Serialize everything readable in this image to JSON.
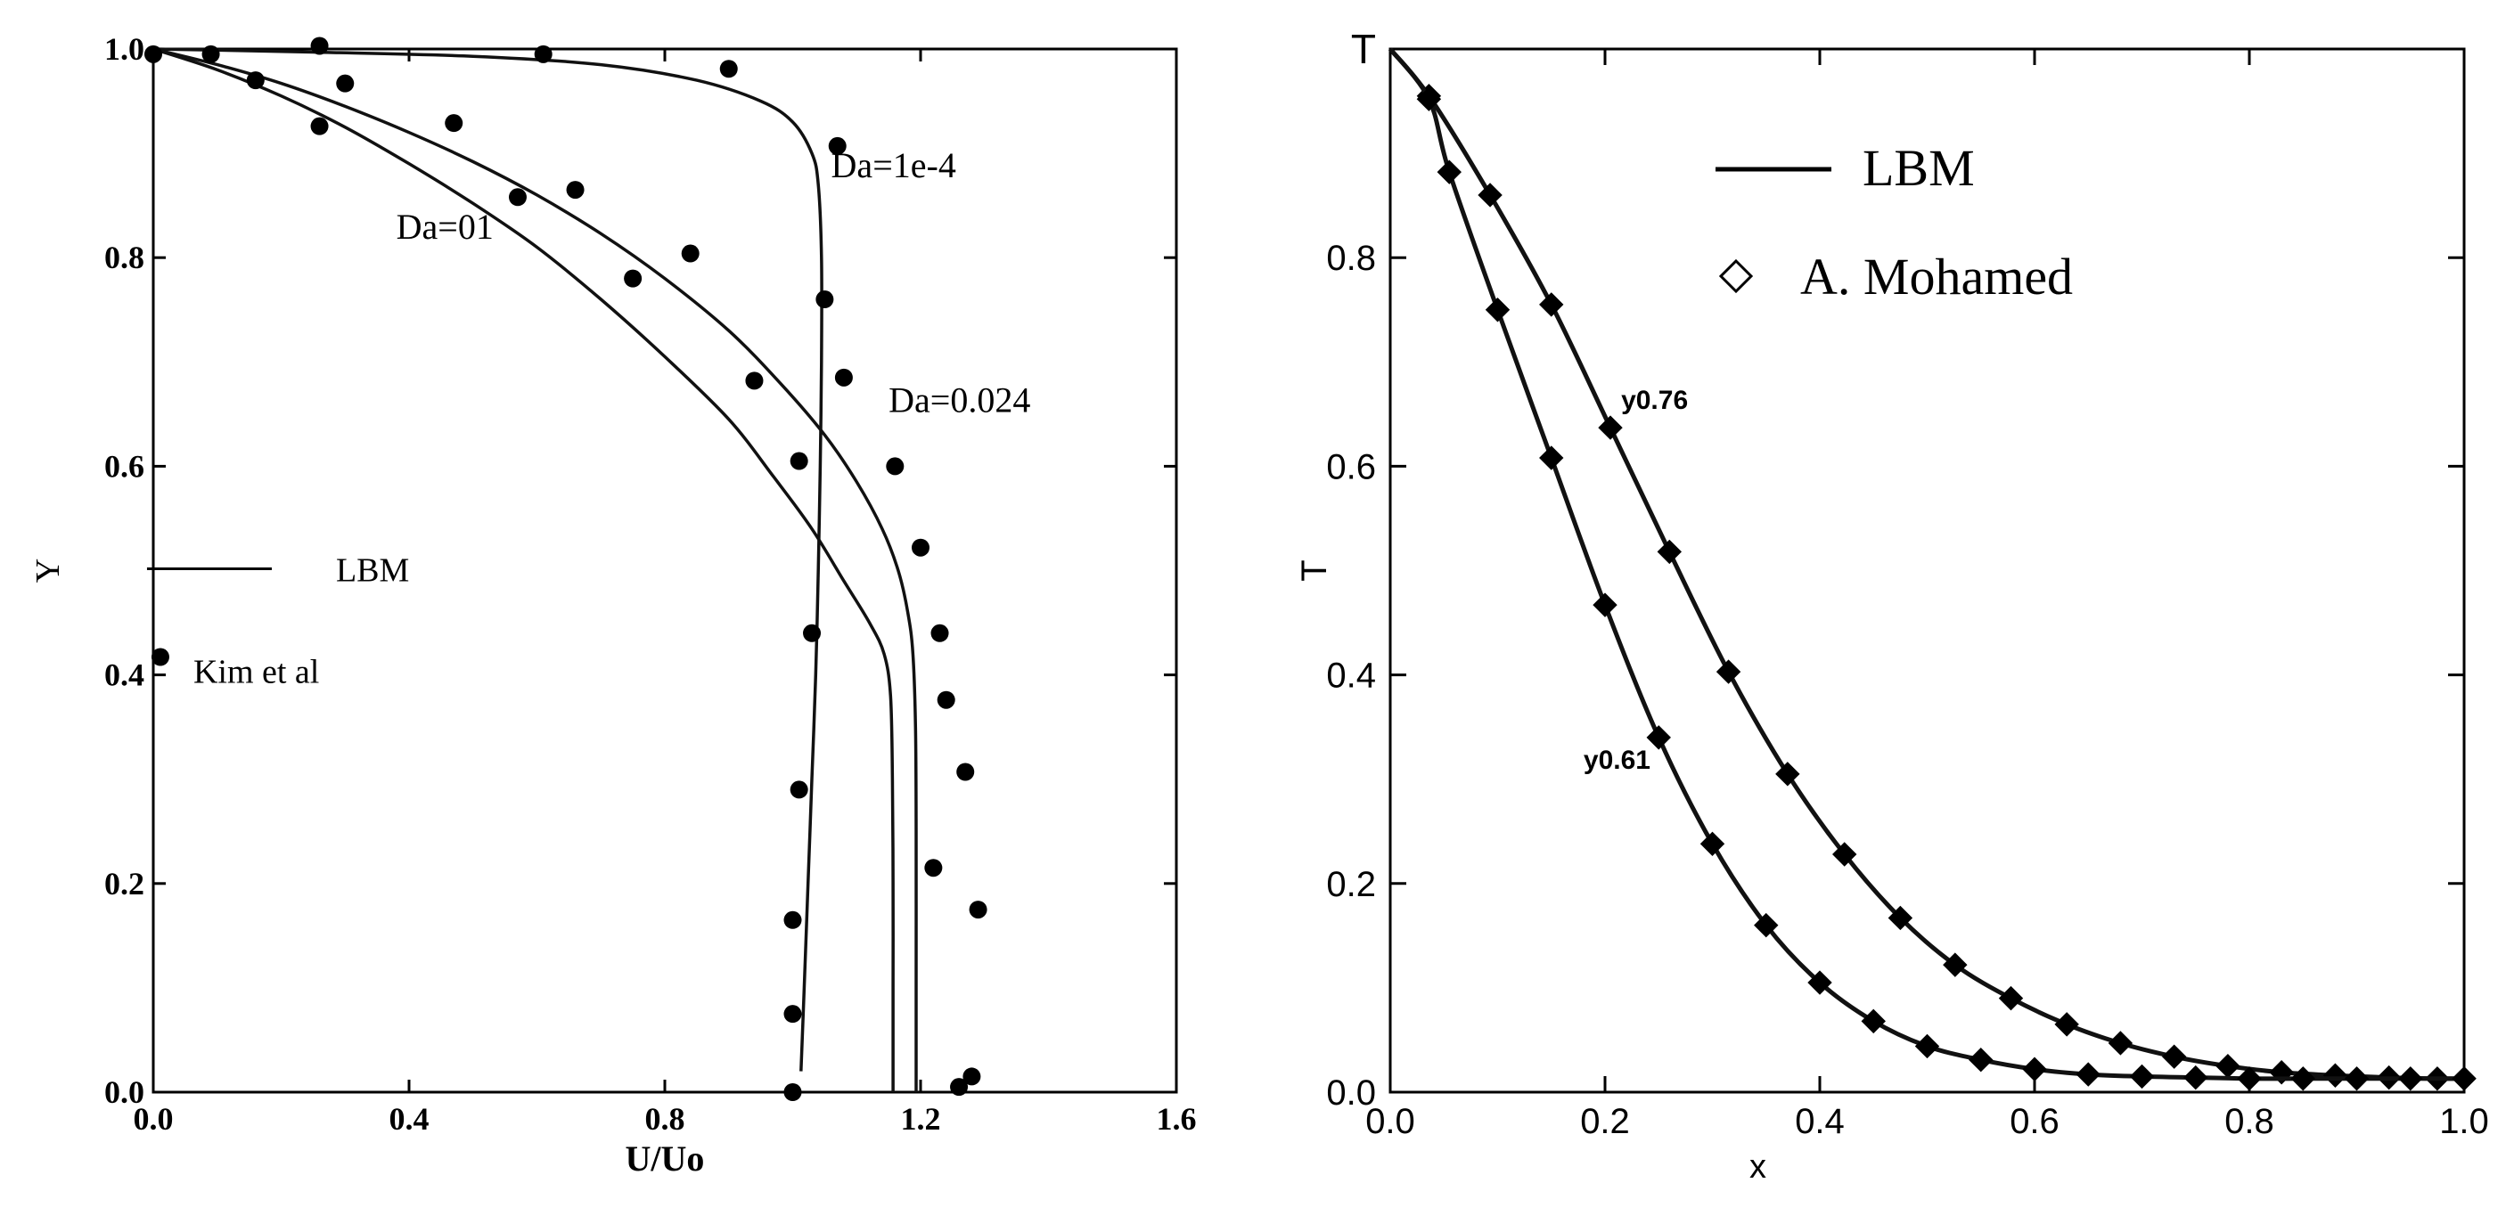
{
  "chart_data": [
    {
      "type": "line",
      "xlabel": "U/Uo",
      "ylabel": "Y",
      "xlim": [
        0,
        1.6
      ],
      "ylim": [
        0,
        1
      ],
      "xticks": [
        "0.0",
        "0.4",
        "0.8",
        "1.2",
        "1.6"
      ],
      "yticks": [
        "0.0",
        "0.2",
        "0.4",
        "0.6",
        "0.8",
        "1.0"
      ],
      "legend": {
        "placement": "center-left",
        "entries": [
          {
            "label": "LBM",
            "marker": "line"
          },
          {
            "label": "Kim et al",
            "marker": "filled-circle"
          }
        ]
      },
      "annotations": [
        {
          "text": "Da=1e-4",
          "x": 1.06,
          "y": 0.877
        },
        {
          "text": "Da=01",
          "x": 0.38,
          "y": 0.818
        },
        {
          "text": "Da=0.024",
          "x": 1.15,
          "y": 0.652
        }
      ],
      "series": [
        {
          "marker": "line",
          "points": [
            [
              0.0,
              1.0
            ],
            [
              0.25,
              0.997
            ],
            [
              0.5,
              0.993
            ],
            [
              0.7,
              0.985
            ],
            [
              0.85,
              0.97
            ],
            [
              0.95,
              0.95
            ],
            [
              1.0,
              0.93
            ],
            [
              1.03,
              0.9
            ],
            [
              1.04,
              0.87
            ],
            [
              1.045,
              0.8
            ],
            [
              1.045,
              0.7
            ],
            [
              1.043,
              0.6
            ],
            [
              1.04,
              0.5
            ],
            [
              1.036,
              0.4
            ],
            [
              1.03,
              0.3
            ],
            [
              1.024,
              0.2
            ],
            [
              1.018,
              0.1
            ],
            [
              1.013,
              0.02
            ]
          ]
        },
        {
          "marker": "line",
          "points": [
            [
              0.0,
              1.0
            ],
            [
              0.1,
              0.98
            ],
            [
              0.2,
              0.955
            ],
            [
              0.3,
              0.925
            ],
            [
              0.4,
              0.89
            ],
            [
              0.5,
              0.852
            ],
            [
              0.6,
              0.81
            ],
            [
              0.7,
              0.76
            ],
            [
              0.8,
              0.705
            ],
            [
              0.9,
              0.645
            ],
            [
              0.97,
              0.59
            ],
            [
              1.03,
              0.54
            ],
            [
              1.08,
              0.49
            ],
            [
              1.12,
              0.45
            ],
            [
              1.143,
              0.42
            ],
            [
              1.153,
              0.38
            ],
            [
              1.156,
              0.3
            ],
            [
              1.157,
              0.2
            ],
            [
              1.157,
              0.1
            ],
            [
              1.157,
              0.0
            ]
          ]
        },
        {
          "marker": "line",
          "points": [
            [
              0.0,
              1.0
            ],
            [
              0.1,
              0.985
            ],
            [
              0.2,
              0.967
            ],
            [
              0.3,
              0.945
            ],
            [
              0.4,
              0.92
            ],
            [
              0.5,
              0.892
            ],
            [
              0.6,
              0.86
            ],
            [
              0.7,
              0.823
            ],
            [
              0.8,
              0.78
            ],
            [
              0.9,
              0.73
            ],
            [
              0.98,
              0.68
            ],
            [
              1.05,
              0.63
            ],
            [
              1.1,
              0.585
            ],
            [
              1.14,
              0.54
            ],
            [
              1.165,
              0.5
            ],
            [
              1.18,
              0.46
            ],
            [
              1.188,
              0.42
            ],
            [
              1.192,
              0.35
            ],
            [
              1.193,
              0.25
            ],
            [
              1.193,
              0.1
            ],
            [
              1.193,
              0.0
            ]
          ]
        },
        {
          "name": "Kim et al",
          "marker": "filled-circle",
          "points": [
            [
              0.0,
              0.995
            ],
            [
              0.09,
              0.995
            ],
            [
              0.16,
              0.97
            ],
            [
              0.26,
              0.926
            ],
            [
              0.26,
              1.003
            ],
            [
              0.3,
              0.967
            ],
            [
              0.47,
              0.929
            ],
            [
              0.57,
              0.858
            ],
            [
              0.61,
              0.995
            ],
            [
              0.66,
              0.865
            ],
            [
              0.75,
              0.78
            ],
            [
              0.84,
              0.804
            ],
            [
              0.9,
              0.981
            ],
            [
              0.94,
              0.682
            ],
            [
              1.0,
              0.0
            ],
            [
              1.0,
              0.075
            ],
            [
              1.0,
              0.165
            ],
            [
              1.01,
              0.29
            ],
            [
              1.01,
              0.605
            ],
            [
              1.03,
              0.44
            ],
            [
              1.05,
              0.76
            ],
            [
              1.07,
              0.907
            ],
            [
              1.08,
              0.685
            ],
            [
              1.16,
              0.6
            ],
            [
              1.2,
              0.522
            ],
            [
              1.22,
              0.215
            ],
            [
              1.23,
              0.44
            ],
            [
              1.24,
              0.376
            ],
            [
              1.26,
              0.005
            ],
            [
              1.27,
              0.307
            ],
            [
              1.28,
              0.015
            ],
            [
              1.29,
              0.175
            ]
          ]
        }
      ]
    },
    {
      "type": "line",
      "xlabel": "x",
      "ylabel": "T",
      "xlim": [
        0,
        1
      ],
      "ylim": [
        0,
        1
      ],
      "xticks": [
        "0.0",
        "0.2",
        "0.4",
        "0.6",
        "0.8",
        "1.0"
      ],
      "yticks": [
        "0.0",
        "0.2",
        "0.4",
        "0.6",
        "0.8"
      ],
      "ytop_label": "T",
      "legend": {
        "placement": "top-center",
        "entries": [
          {
            "label": "LBM",
            "marker": "line"
          },
          {
            "label": "A. Mohamed",
            "marker": "open-diamond"
          }
        ]
      },
      "annotations": [
        {
          "text": "y0.76",
          "x": 0.215,
          "y": 0.655
        },
        {
          "text": "y0.61",
          "x": 0.18,
          "y": 0.31
        }
      ],
      "series": [
        {
          "marker": "line-diamond",
          "points": [
            [
              0.0,
              1.0
            ],
            [
              0.036,
              0.955
            ],
            [
              0.093,
              0.86
            ],
            [
              0.15,
              0.755
            ],
            [
              0.205,
              0.637
            ],
            [
              0.26,
              0.518
            ],
            [
              0.315,
              0.403
            ],
            [
              0.37,
              0.305
            ],
            [
              0.423,
              0.228
            ],
            [
              0.475,
              0.167
            ],
            [
              0.526,
              0.122
            ],
            [
              0.578,
              0.09
            ],
            [
              0.63,
              0.065
            ],
            [
              0.68,
              0.047
            ],
            [
              0.73,
              0.034
            ],
            [
              0.78,
              0.025
            ],
            [
              0.83,
              0.019
            ],
            [
              0.88,
              0.016
            ],
            [
              0.93,
              0.014
            ],
            [
              0.975,
              0.013
            ],
            [
              1.0,
              0.013
            ]
          ]
        },
        {
          "marker": "line-diamond",
          "points": [
            [
              0.0,
              1.0
            ],
            [
              0.036,
              0.952
            ],
            [
              0.055,
              0.882
            ],
            [
              0.1,
              0.75
            ],
            [
              0.15,
              0.608
            ],
            [
              0.2,
              0.467
            ],
            [
              0.25,
              0.34
            ],
            [
              0.3,
              0.238
            ],
            [
              0.35,
              0.16
            ],
            [
              0.4,
              0.105
            ],
            [
              0.45,
              0.068
            ],
            [
              0.5,
              0.044
            ],
            [
              0.55,
              0.031
            ],
            [
              0.6,
              0.022
            ],
            [
              0.65,
              0.017
            ],
            [
              0.7,
              0.015
            ],
            [
              0.75,
              0.014
            ],
            [
              0.8,
              0.013
            ],
            [
              0.85,
              0.013
            ],
            [
              0.9,
              0.013
            ],
            [
              0.95,
              0.013
            ],
            [
              1.0,
              0.013
            ]
          ]
        }
      ]
    }
  ]
}
